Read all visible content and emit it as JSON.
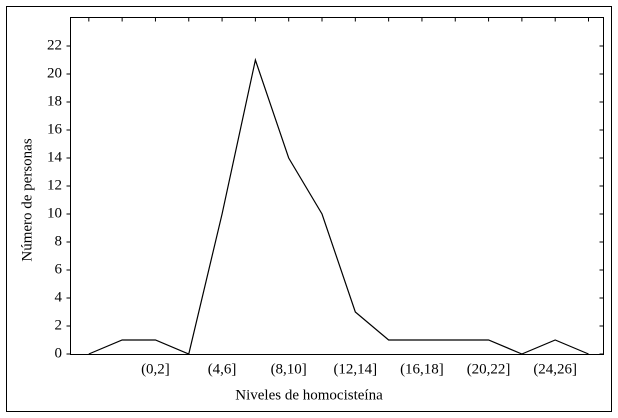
{
  "chart_data": {
    "type": "line",
    "x_label": "Niveles de homocisteína",
    "y_label": "Número de personas",
    "categories": [
      null,
      null,
      "(0,2]",
      null,
      "(4,6]",
      null,
      "(8,10]",
      null,
      "(12,14]",
      null,
      "(16,18]",
      null,
      "(20,22]",
      null,
      "(24,26]",
      null
    ],
    "values": [
      0,
      1,
      1,
      0,
      10,
      21,
      14,
      10,
      3,
      1,
      1,
      1,
      1,
      0,
      1,
      0
    ],
    "color": "#000000",
    "ylim": [
      0,
      22
    ],
    "yticks": [
      0,
      2,
      4,
      6,
      8,
      10,
      12,
      14,
      16,
      18,
      20,
      22
    ]
  }
}
